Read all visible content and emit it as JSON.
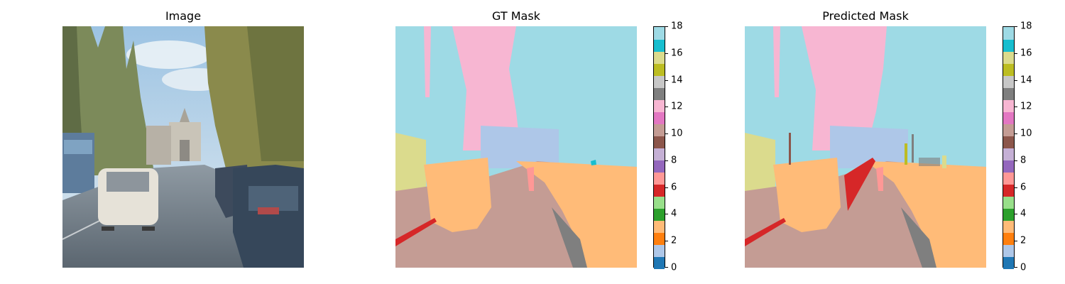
{
  "chart_data": [
    {
      "type": "image",
      "title": "Image"
    },
    {
      "type": "heatmap",
      "title": "GT Mask",
      "colorbar": {
        "vmin": 0,
        "vmax": 18,
        "ticks": [
          "0",
          "2",
          "4",
          "6",
          "8",
          "10",
          "12",
          "14",
          "16",
          "18"
        ],
        "colors": [
          "#1f77b4",
          "#aec7e8",
          "#ff7f0e",
          "#ffbb78",
          "#2ca02c",
          "#98df8a",
          "#d62728",
          "#ff9896",
          "#9467bd",
          "#c5b0d5",
          "#8c564b",
          "#c49c94",
          "#e377c2",
          "#f7b6d2",
          "#7f7f7f",
          "#c7c7c7",
          "#bcbd22",
          "#dbdb8d",
          "#17becf",
          "#9edae5"
        ]
      }
    },
    {
      "type": "heatmap",
      "title": "Predicted Mask",
      "colorbar": {
        "vmin": 0,
        "vmax": 18,
        "ticks": [
          "0",
          "2",
          "4",
          "6",
          "8",
          "10",
          "12",
          "14",
          "16",
          "18"
        ],
        "colors": [
          "#1f77b4",
          "#aec7e8",
          "#ff7f0e",
          "#ffbb78",
          "#2ca02c",
          "#98df8a",
          "#d62728",
          "#ff9896",
          "#9467bd",
          "#c5b0d5",
          "#8c564b",
          "#c49c94",
          "#e377c2",
          "#f7b6d2",
          "#7f7f7f",
          "#c7c7c7",
          "#bcbd22",
          "#dbdb8d",
          "#17becf",
          "#9edae5"
        ]
      }
    }
  ]
}
